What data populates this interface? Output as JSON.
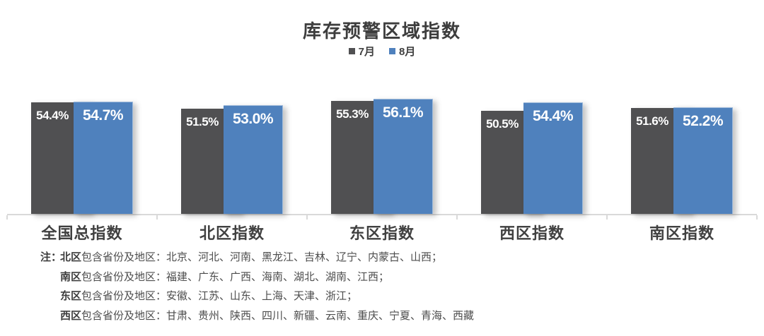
{
  "title": "库存预警区域指数",
  "chart_data": {
    "type": "bar",
    "title": "库存预警区域指数",
    "categories": [
      "全国总指数",
      "北区指数",
      "东区指数",
      "西区指数",
      "南区指数"
    ],
    "series": [
      {
        "name": "7月",
        "color": "#505052",
        "values": [
          54.4,
          51.5,
          55.3,
          50.5,
          51.6
        ]
      },
      {
        "name": "8月",
        "color": "#4F81BD",
        "values": [
          54.7,
          53.0,
          56.1,
          54.4,
          52.2
        ]
      }
    ],
    "value_suffix": "%",
    "ylim": [
      0,
      60
    ],
    "grid": false,
    "legend_position": "top",
    "data_labels": "inside-end",
    "axis_color": "#D9D9D9",
    "label_text_color": "#FFFFFF"
  },
  "notes": {
    "prefix": "注：",
    "lines": [
      {
        "region": "北区",
        "text": "包含省份及地区：北京、河北、河南、黑龙江、吉林、辽宁、内蒙古、山西；"
      },
      {
        "region": "南区",
        "text": "包含省份及地区：福建、广东、广西、海南、湖北、湖南、江西；"
      },
      {
        "region": "东区",
        "text": "包含省份及地区：安徽、江苏、山东、上海、天津、浙江；"
      },
      {
        "region": "西区",
        "text": "包含省份及地区：甘肃、贵州、陕西、四川、新疆、云南、重庆、宁夏、青海、西藏"
      }
    ]
  }
}
